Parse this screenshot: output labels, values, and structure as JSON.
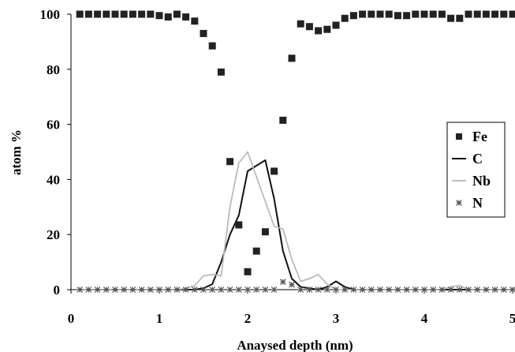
{
  "chart_data": {
    "type": "scatter",
    "xlabel": "Anaysed depth (nm)",
    "ylabel": "atom %",
    "xlim": [
      0,
      5
    ],
    "ylim": [
      0,
      100
    ],
    "x_ticks": [
      "0",
      "1",
      "2",
      "3",
      "4",
      "5"
    ],
    "y_ticks": [
      "0",
      "20",
      "40",
      "60",
      "80",
      "100"
    ],
    "grid": false,
    "legend_position": "right",
    "series": [
      {
        "name": "Fe",
        "style": "square-markers",
        "color": "#222222",
        "x": [
          0.1,
          0.2,
          0.3,
          0.4,
          0.5,
          0.6,
          0.7,
          0.8,
          0.9,
          1.0,
          1.1,
          1.2,
          1.3,
          1.4,
          1.5,
          1.6,
          1.7,
          1.8,
          1.9,
          2.0,
          2.1,
          2.2,
          2.3,
          2.4,
          2.5,
          2.6,
          2.7,
          2.8,
          2.9,
          3.0,
          3.1,
          3.2,
          3.3,
          3.4,
          3.5,
          3.6,
          3.7,
          3.8,
          3.9,
          4.0,
          4.1,
          4.2,
          4.3,
          4.4,
          4.5,
          4.6,
          4.7,
          4.8,
          4.9,
          5.0
        ],
        "y": [
          100,
          100,
          100,
          100,
          100,
          100,
          100,
          100,
          100,
          99.5,
          99,
          100,
          99,
          97.5,
          93,
          88.5,
          79,
          46.5,
          23.5,
          6.5,
          14,
          21,
          43,
          61.5,
          84,
          96.5,
          95.5,
          94,
          94.5,
          96,
          98.5,
          99.5,
          100,
          100,
          100,
          100,
          99.5,
          99.5,
          100,
          100,
          100,
          100,
          98.5,
          98.5,
          100,
          100,
          100,
          100,
          100,
          100
        ]
      },
      {
        "name": "C",
        "style": "line",
        "color": "#111111",
        "x": [
          0.1,
          0.5,
          1.0,
          1.4,
          1.5,
          1.6,
          1.7,
          1.8,
          1.9,
          2.0,
          2.1,
          2.2,
          2.3,
          2.4,
          2.5,
          2.6,
          2.7,
          2.8,
          2.9,
          3.0,
          3.1,
          3.2,
          3.5,
          4.0,
          4.5,
          5.0
        ],
        "y": [
          0,
          0,
          0,
          0,
          0.5,
          2,
          10,
          20,
          27,
          43,
          45,
          47,
          33,
          14,
          4,
          1,
          0.5,
          0,
          1,
          3,
          1,
          0,
          0,
          0,
          0,
          0
        ]
      },
      {
        "name": "Nb",
        "style": "line",
        "color": "#bbbbbb",
        "x": [
          0.1,
          0.5,
          1.0,
          1.2,
          1.3,
          1.4,
          1.5,
          1.6,
          1.7,
          1.8,
          1.9,
          2.0,
          2.1,
          2.2,
          2.3,
          2.4,
          2.5,
          2.6,
          2.7,
          2.8,
          2.9,
          3.0,
          3.2,
          3.5,
          4.0,
          4.2,
          4.3,
          4.4,
          4.5,
          5.0
        ],
        "y": [
          0,
          0,
          0,
          0,
          0.5,
          1.5,
          5,
          5.5,
          5,
          30,
          46,
          50,
          41,
          32,
          23,
          22,
          11,
          3,
          4,
          5.5,
          2,
          0,
          0,
          0,
          0,
          0,
          1,
          1.5,
          0,
          0
        ]
      },
      {
        "name": "N",
        "style": "asterisk-markers",
        "color": "#555555",
        "x": [
          0.1,
          0.2,
          0.3,
          0.4,
          0.5,
          0.6,
          0.7,
          0.8,
          0.9,
          1.0,
          1.1,
          1.2,
          1.3,
          1.4,
          1.5,
          1.6,
          1.7,
          1.8,
          1.9,
          2.0,
          2.1,
          2.2,
          2.3,
          2.4,
          2.5,
          2.6,
          2.7,
          2.8,
          2.9,
          3.0,
          3.1,
          3.2,
          3.3,
          3.4,
          3.5,
          3.6,
          3.7,
          3.8,
          3.9,
          4.0,
          4.1,
          4.2,
          4.3,
          4.4,
          4.5,
          4.6,
          4.7,
          4.8,
          4.9,
          5.0
        ],
        "y": [
          0,
          0,
          0,
          0,
          0,
          0,
          0,
          0,
          0,
          0,
          0,
          0,
          0,
          0,
          0,
          0,
          0,
          0,
          0,
          0,
          0,
          0,
          0,
          2.8,
          1.8,
          0,
          0,
          0,
          0,
          0,
          0,
          0,
          0,
          0,
          0,
          0,
          0,
          0,
          0,
          0,
          0,
          0,
          0,
          0,
          0,
          0,
          0,
          0,
          0,
          0
        ]
      }
    ]
  }
}
